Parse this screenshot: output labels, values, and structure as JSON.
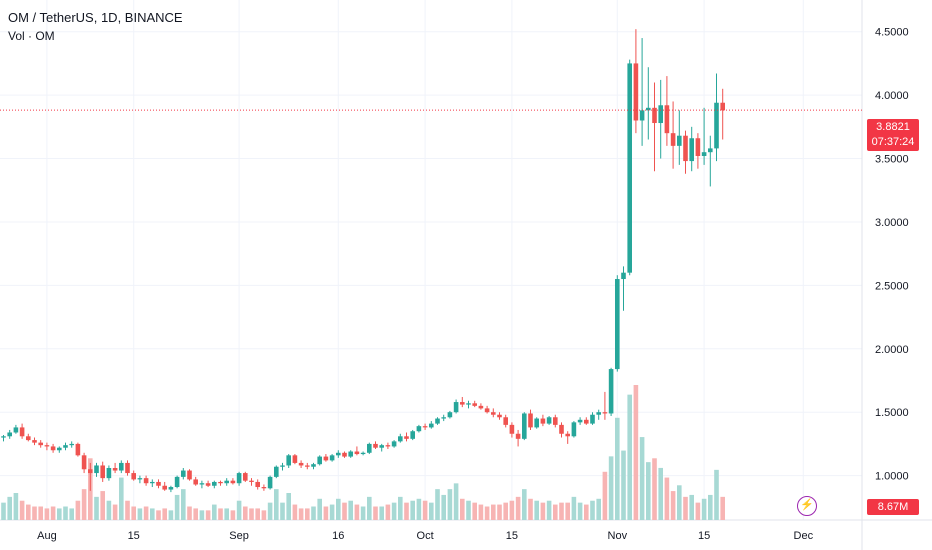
{
  "header": {
    "title": "OM / TetherUS, 1D, BINANCE",
    "volume_label": "Vol · OM"
  },
  "badges": {
    "last_price": "3.8821",
    "countdown": "07:37:24",
    "volume": "8.67M"
  },
  "colors": {
    "up": "#26a69a",
    "down": "#ef5350",
    "up_volume": "#a7d9d4",
    "down_volume": "#f7b4b3",
    "badge": "#f23645",
    "grid": "#f0f3fa"
  },
  "icons": {
    "flash": "lightning-bolt-icon"
  },
  "chart_data": {
    "type": "candlestick",
    "symbol": "OM / TetherUS",
    "interval": "1D",
    "exchange": "BINANCE",
    "ylim": [
      0.65,
      4.75
    ],
    "y_ticks": [
      1.0,
      1.5,
      2.0,
      2.5,
      3.0,
      3.5,
      4.0,
      4.5
    ],
    "y_tick_labels": [
      "1.0000",
      "1.5000",
      "2.0000",
      "2.5000",
      "3.0000",
      "3.5000",
      "4.0000",
      "4.5000"
    ],
    "x_tick_labels": [
      "Aug",
      "15",
      "Sep",
      "16",
      "Oct",
      "15",
      "Nov",
      "15",
      "Dec"
    ],
    "x_tick_index": [
      7,
      21,
      38,
      54,
      68,
      82,
      99,
      113,
      129
    ],
    "last_price": 3.8821,
    "grid": true,
    "candles": [
      [
        1.3,
        1.32,
        1.27,
        1.31
      ],
      [
        1.31,
        1.36,
        1.29,
        1.34
      ],
      [
        1.34,
        1.4,
        1.33,
        1.38
      ],
      [
        1.38,
        1.41,
        1.29,
        1.31
      ],
      [
        1.31,
        1.33,
        1.27,
        1.28
      ],
      [
        1.28,
        1.3,
        1.24,
        1.26
      ],
      [
        1.26,
        1.28,
        1.22,
        1.24
      ],
      [
        1.24,
        1.26,
        1.2,
        1.23
      ],
      [
        1.23,
        1.25,
        1.18,
        1.2
      ],
      [
        1.2,
        1.23,
        1.18,
        1.22
      ],
      [
        1.22,
        1.26,
        1.2,
        1.24
      ],
      [
        1.24,
        1.27,
        1.22,
        1.25
      ],
      [
        1.25,
        1.26,
        1.15,
        1.16
      ],
      [
        1.16,
        1.18,
        1.02,
        1.05
      ],
      [
        1.05,
        1.1,
        0.88,
        1.02
      ],
      [
        1.02,
        1.1,
        0.99,
        1.08
      ],
      [
        1.08,
        1.11,
        0.95,
        0.98
      ],
      [
        0.98,
        1.08,
        0.96,
        1.06
      ],
      [
        1.06,
        1.1,
        1.02,
        1.04
      ],
      [
        1.04,
        1.12,
        1.02,
        1.1
      ],
      [
        1.1,
        1.12,
        1.0,
        1.02
      ],
      [
        1.02,
        1.04,
        0.96,
        0.97
      ],
      [
        0.97,
        1.0,
        0.94,
        0.98
      ],
      [
        0.98,
        1.0,
        0.92,
        0.94
      ],
      [
        0.94,
        0.97,
        0.91,
        0.95
      ],
      [
        0.95,
        0.97,
        0.9,
        0.92
      ],
      [
        0.92,
        0.95,
        0.88,
        0.89
      ],
      [
        0.89,
        0.92,
        0.87,
        0.91
      ],
      [
        0.91,
        1.0,
        0.9,
        0.99
      ],
      [
        0.99,
        1.06,
        0.97,
        1.04
      ],
      [
        1.04,
        1.05,
        0.96,
        0.97
      ],
      [
        0.97,
        0.99,
        0.92,
        0.93
      ],
      [
        0.93,
        0.96,
        0.9,
        0.94
      ],
      [
        0.94,
        0.96,
        0.91,
        0.92
      ],
      [
        0.92,
        0.96,
        0.9,
        0.95
      ],
      [
        0.95,
        0.96,
        0.92,
        0.94
      ],
      [
        0.94,
        0.98,
        0.92,
        0.96
      ],
      [
        0.96,
        0.98,
        0.93,
        0.94
      ],
      [
        0.94,
        1.03,
        0.92,
        1.02
      ],
      [
        1.02,
        1.03,
        0.95,
        0.96
      ],
      [
        0.96,
        0.98,
        0.92,
        0.95
      ],
      [
        0.95,
        0.97,
        0.89,
        0.91
      ],
      [
        0.91,
        0.93,
        0.88,
        0.9
      ],
      [
        0.9,
        1.0,
        0.89,
        0.99
      ],
      [
        0.99,
        1.08,
        0.98,
        1.07
      ],
      [
        1.07,
        1.1,
        1.04,
        1.08
      ],
      [
        1.08,
        1.17,
        1.06,
        1.16
      ],
      [
        1.16,
        1.17,
        1.09,
        1.1
      ],
      [
        1.1,
        1.12,
        1.06,
        1.08
      ],
      [
        1.08,
        1.1,
        1.05,
        1.07
      ],
      [
        1.07,
        1.1,
        1.05,
        1.09
      ],
      [
        1.09,
        1.16,
        1.08,
        1.15
      ],
      [
        1.15,
        1.17,
        1.11,
        1.12
      ],
      [
        1.12,
        1.17,
        1.11,
        1.16
      ],
      [
        1.16,
        1.2,
        1.14,
        1.18
      ],
      [
        1.18,
        1.19,
        1.14,
        1.15
      ],
      [
        1.15,
        1.2,
        1.14,
        1.19
      ],
      [
        1.19,
        1.23,
        1.16,
        1.17
      ],
      [
        1.17,
        1.19,
        1.16,
        1.18
      ],
      [
        1.18,
        1.26,
        1.17,
        1.25
      ],
      [
        1.25,
        1.27,
        1.21,
        1.22
      ],
      [
        1.22,
        1.25,
        1.19,
        1.24
      ],
      [
        1.24,
        1.26,
        1.21,
        1.23
      ],
      [
        1.23,
        1.28,
        1.22,
        1.27
      ],
      [
        1.27,
        1.33,
        1.26,
        1.31
      ],
      [
        1.31,
        1.34,
        1.27,
        1.29
      ],
      [
        1.29,
        1.36,
        1.28,
        1.35
      ],
      [
        1.35,
        1.4,
        1.34,
        1.39
      ],
      [
        1.39,
        1.41,
        1.36,
        1.38
      ],
      [
        1.38,
        1.43,
        1.37,
        1.41
      ],
      [
        1.41,
        1.46,
        1.4,
        1.45
      ],
      [
        1.45,
        1.48,
        1.43,
        1.46
      ],
      [
        1.46,
        1.51,
        1.45,
        1.5
      ],
      [
        1.5,
        1.6,
        1.49,
        1.58
      ],
      [
        1.58,
        1.62,
        1.54,
        1.56
      ],
      [
        1.56,
        1.59,
        1.53,
        1.57
      ],
      [
        1.57,
        1.59,
        1.54,
        1.55
      ],
      [
        1.55,
        1.57,
        1.52,
        1.53
      ],
      [
        1.53,
        1.55,
        1.49,
        1.5
      ],
      [
        1.5,
        1.53,
        1.46,
        1.48
      ],
      [
        1.48,
        1.5,
        1.44,
        1.46
      ],
      [
        1.46,
        1.48,
        1.38,
        1.4
      ],
      [
        1.4,
        1.42,
        1.3,
        1.33
      ],
      [
        1.33,
        1.36,
        1.23,
        1.29
      ],
      [
        1.29,
        1.5,
        1.28,
        1.49
      ],
      [
        1.49,
        1.52,
        1.36,
        1.38
      ],
      [
        1.38,
        1.46,
        1.37,
        1.45
      ],
      [
        1.45,
        1.48,
        1.39,
        1.41
      ],
      [
        1.41,
        1.47,
        1.4,
        1.46
      ],
      [
        1.46,
        1.48,
        1.38,
        1.4
      ],
      [
        1.4,
        1.42,
        1.3,
        1.33
      ],
      [
        1.33,
        1.35,
        1.25,
        1.31
      ],
      [
        1.31,
        1.43,
        1.3,
        1.42
      ],
      [
        1.42,
        1.46,
        1.4,
        1.44
      ],
      [
        1.44,
        1.46,
        1.4,
        1.41
      ],
      [
        1.41,
        1.5,
        1.4,
        1.48
      ],
      [
        1.48,
        1.52,
        1.44,
        1.5
      ],
      [
        1.5,
        1.66,
        1.44,
        1.49
      ],
      [
        1.49,
        1.85,
        1.47,
        1.84
      ],
      [
        1.84,
        2.58,
        1.82,
        2.55
      ],
      [
        2.55,
        2.65,
        2.3,
        2.6
      ],
      [
        2.6,
        4.28,
        2.58,
        4.25
      ],
      [
        4.25,
        4.52,
        3.7,
        3.8
      ],
      [
        3.8,
        4.45,
        3.6,
        3.88
      ],
      [
        3.88,
        4.22,
        3.65,
        3.9
      ],
      [
        3.9,
        4.1,
        3.4,
        3.78
      ],
      [
        3.78,
        4.12,
        3.5,
        3.92
      ],
      [
        3.92,
        4.15,
        3.6,
        3.7
      ],
      [
        3.7,
        3.95,
        3.42,
        3.6
      ],
      [
        3.6,
        3.88,
        3.45,
        3.68
      ],
      [
        3.68,
        3.72,
        3.38,
        3.48
      ],
      [
        3.48,
        3.75,
        3.4,
        3.66
      ],
      [
        3.66,
        3.7,
        3.42,
        3.52
      ],
      [
        3.52,
        3.9,
        3.45,
        3.55
      ],
      [
        3.55,
        3.68,
        3.28,
        3.58
      ],
      [
        3.58,
        4.17,
        3.48,
        3.94
      ],
      [
        3.94,
        4.05,
        3.65,
        3.88
      ]
    ],
    "volumes": [
      0.9,
      1.2,
      1.4,
      1.0,
      0.8,
      0.7,
      0.7,
      0.6,
      0.7,
      0.6,
      0.7,
      0.6,
      1.0,
      1.6,
      3.2,
      1.2,
      1.5,
      1.0,
      0.8,
      2.2,
      1.0,
      0.7,
      0.6,
      0.7,
      0.6,
      0.5,
      0.6,
      0.5,
      1.3,
      1.6,
      0.7,
      0.6,
      0.5,
      0.5,
      0.8,
      0.6,
      0.6,
      0.5,
      1.0,
      0.7,
      0.6,
      0.6,
      0.5,
      0.9,
      1.6,
      0.9,
      1.4,
      0.8,
      0.6,
      0.6,
      0.7,
      1.1,
      0.7,
      0.8,
      1.1,
      0.9,
      1.0,
      0.8,
      0.7,
      1.2,
      0.7,
      0.7,
      0.8,
      0.9,
      1.2,
      0.9,
      1.0,
      1.1,
      1.0,
      0.9,
      1.6,
      1.3,
      1.6,
      1.9,
      1.1,
      1.0,
      0.9,
      0.8,
      0.7,
      0.8,
      0.8,
      0.9,
      1.0,
      1.2,
      1.6,
      1.1,
      1.0,
      0.9,
      1.0,
      0.8,
      0.9,
      0.9,
      1.2,
      0.9,
      0.8,
      1.0,
      1.1,
      2.5,
      3.3,
      5.3,
      3.6,
      6.5,
      7.0,
      4.3,
      3.0,
      3.2,
      2.7,
      2.2,
      1.5,
      1.8,
      1.2,
      1.3,
      0.9,
      1.1,
      1.3,
      2.6,
      1.2
    ]
  }
}
